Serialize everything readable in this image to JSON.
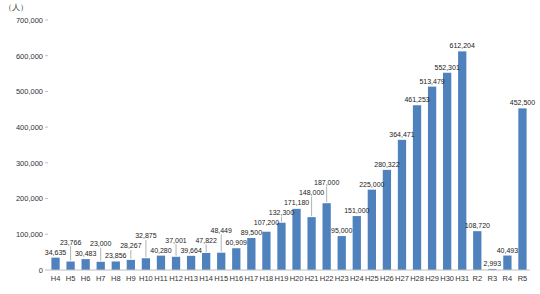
{
  "chart_data": {
    "type": "bar",
    "y_label": "（人）",
    "categories": [
      "H4",
      "H5",
      "H6",
      "H7",
      "H8",
      "H9",
      "H10",
      "H11",
      "H12",
      "H13",
      "H14",
      "H15",
      "H16",
      "H17",
      "H18",
      "H19",
      "H20",
      "H21",
      "H22",
      "H23",
      "H24",
      "H25",
      "H26",
      "H27",
      "H28",
      "H29",
      "H30",
      "H31",
      "R2",
      "R3",
      "R4",
      "R5"
    ],
    "values": [
      34635,
      23766,
      30483,
      23000,
      23856,
      28267,
      32875,
      40280,
      37001,
      39664,
      47822,
      48449,
      60909,
      89500,
      107200,
      132300,
      171180,
      148000,
      187000,
      95000,
      151000,
      225000,
      280322,
      364471,
      461253,
      513479,
      552301,
      612204,
      108720,
      2993,
      40493,
      452500
    ],
    "value_labels": [
      "34,635",
      "23,766",
      "30,483",
      "23,000",
      "23,856",
      "28,267",
      "32,875",
      "40,280",
      "37,001",
      "39,664",
      "47,822",
      "48,449",
      "60,909",
      "89,500",
      "107,200",
      "132,300",
      "171,180",
      "148,000",
      "187,000",
      "95,000",
      "151,000",
      "225,000",
      "280,322",
      "364,471",
      "461,253",
      "513,479",
      "552,301",
      "612,204",
      "108,720",
      "2,993",
      "40,493",
      "452,500"
    ],
    "color": "#4f81bd",
    "ylim": [
      0,
      700000
    ],
    "yticks": [
      0,
      {
        "value": 100000,
        "label": "100,000"
      },
      {
        "value": 200000,
        "label": "200,000"
      },
      {
        "value": 300000,
        "label": "300,000"
      },
      {
        "value": 400000,
        "label": "400,000"
      },
      {
        "value": 500000,
        "label": "500,000"
      },
      {
        "value": 600000,
        "label": "600,000"
      },
      {
        "value": 700000,
        "label": "700,000"
      }
    ],
    "grid": false,
    "data_labels": true
  }
}
